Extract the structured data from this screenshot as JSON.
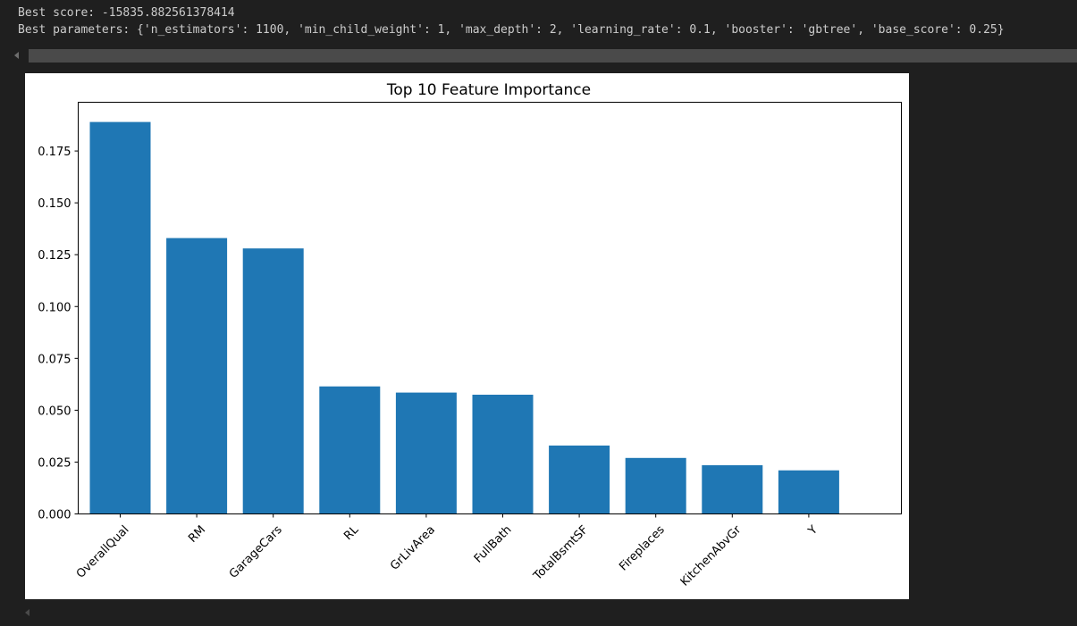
{
  "output": {
    "score_text": "Best score: -15835.882561378414",
    "params_text": "Best parameters: {'n_estimators': 1100, 'min_child_weight': 1, 'max_depth': 2, 'learning_rate': 0.1, 'booster': 'gbtree', 'base_score': 0.25}"
  },
  "colors": {
    "bar": "#1f77b4",
    "background": "#1f1f1f",
    "text": "#cccccc",
    "link": "#3794ff"
  },
  "chart_data": {
    "type": "bar",
    "title": "Top 10 Feature Importance",
    "xlabel": "",
    "ylabel": "",
    "categories": [
      "OverallQual",
      "RM",
      "GarageCars",
      "RL",
      "GrLivArea",
      "FullBath",
      "TotalBsmtSF",
      "Fireplaces",
      "KitchenAbvGr",
      "Y"
    ],
    "values": [
      0.189,
      0.133,
      0.128,
      0.0615,
      0.0585,
      0.0575,
      0.033,
      0.027,
      0.0235,
      0.021
    ],
    "yticks": [
      0.0,
      0.025,
      0.05,
      0.075,
      0.1,
      0.125,
      0.15,
      0.175
    ],
    "ytick_labels": [
      "0.000",
      "0.025",
      "0.050",
      "0.075",
      "0.100",
      "0.125",
      "0.150",
      "0.175"
    ],
    "ylim": [
      0,
      0.1985
    ],
    "grid": false,
    "xtick_rotation": 45
  }
}
